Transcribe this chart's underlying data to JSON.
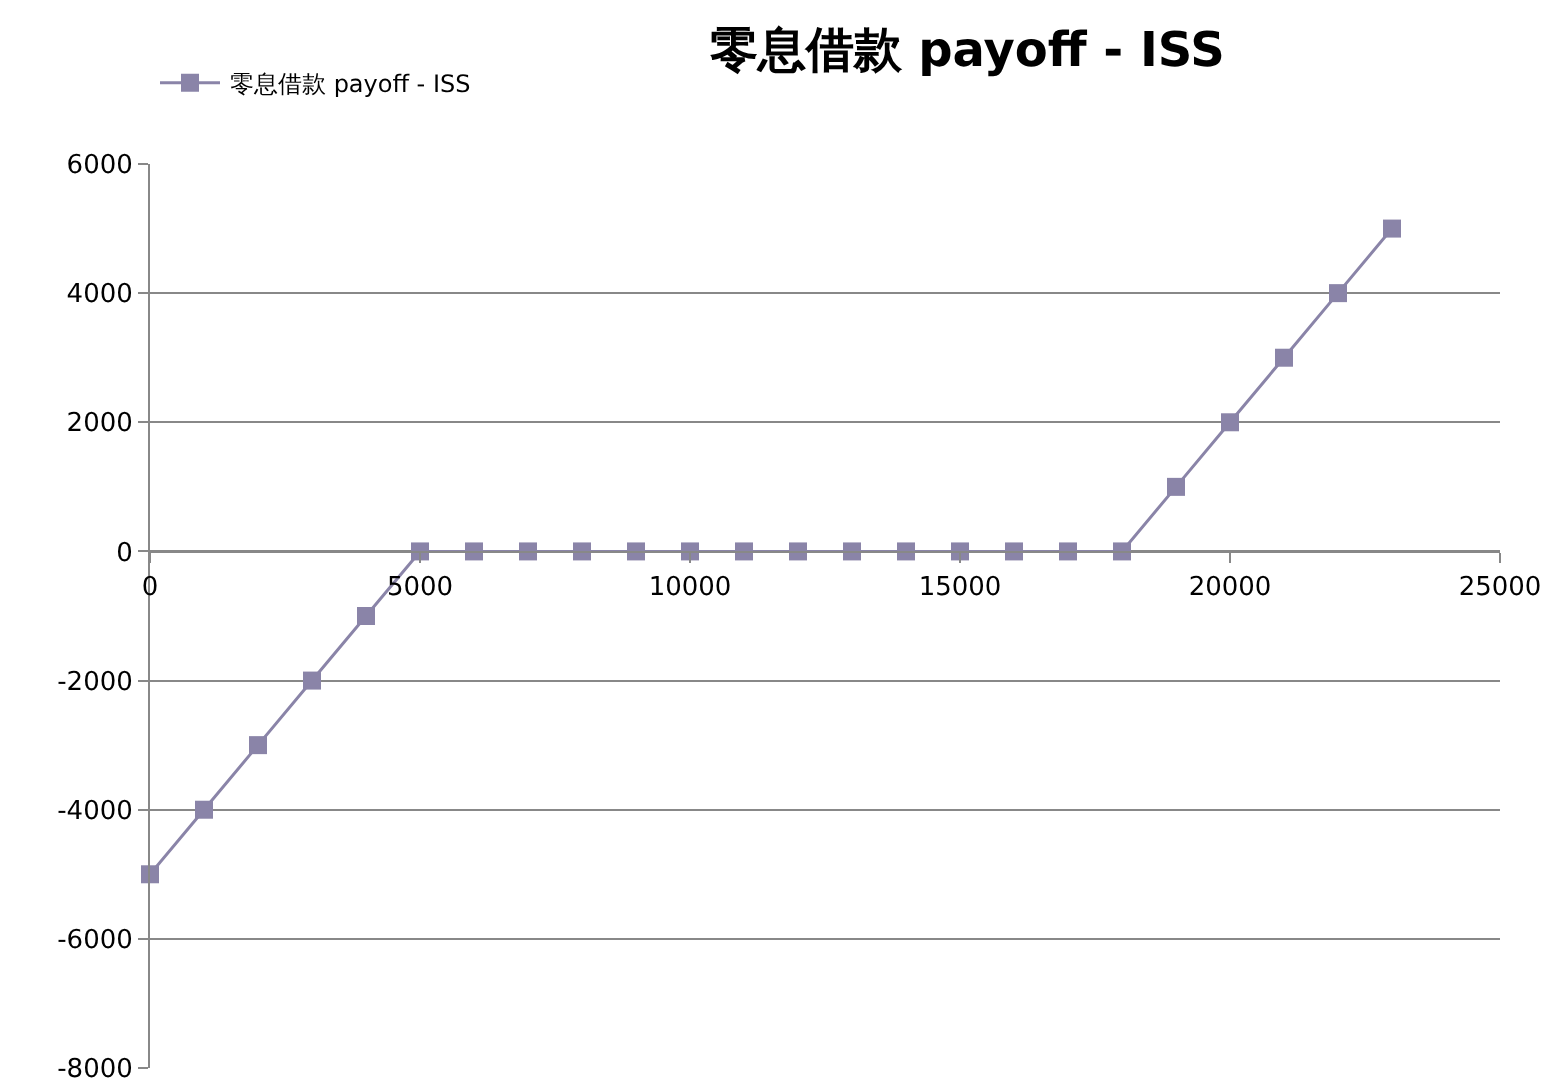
{
  "chart_data": {
    "type": "line",
    "title": "零息借款 payoff - ISS",
    "x": [
      0,
      1000,
      2000,
      3000,
      4000,
      5000,
      6000,
      7000,
      8000,
      9000,
      10000,
      11000,
      12000,
      13000,
      14000,
      15000,
      16000,
      17000,
      18000,
      19000,
      20000,
      21000,
      22000,
      23000
    ],
    "series": [
      {
        "name": "零息借款 payoff - ISS",
        "color": "#8a84a8",
        "values": [
          -5000,
          -4000,
          -3000,
          -2000,
          -1000,
          0,
          0,
          0,
          0,
          0,
          0,
          0,
          0,
          0,
          0,
          0,
          0,
          0,
          0,
          1000,
          2000,
          3000,
          4000,
          5000
        ]
      }
    ],
    "xlim": [
      0,
      25000
    ],
    "xticks": [
      0,
      5000,
      10000,
      15000,
      20000,
      25000
    ],
    "ylim": [
      -8000,
      6000
    ],
    "yticks": [
      -8000,
      -6000,
      -4000,
      -2000,
      0,
      2000,
      4000,
      6000
    ],
    "grid": "y",
    "legend": "top left",
    "marker": "square",
    "line_style": "solid"
  }
}
